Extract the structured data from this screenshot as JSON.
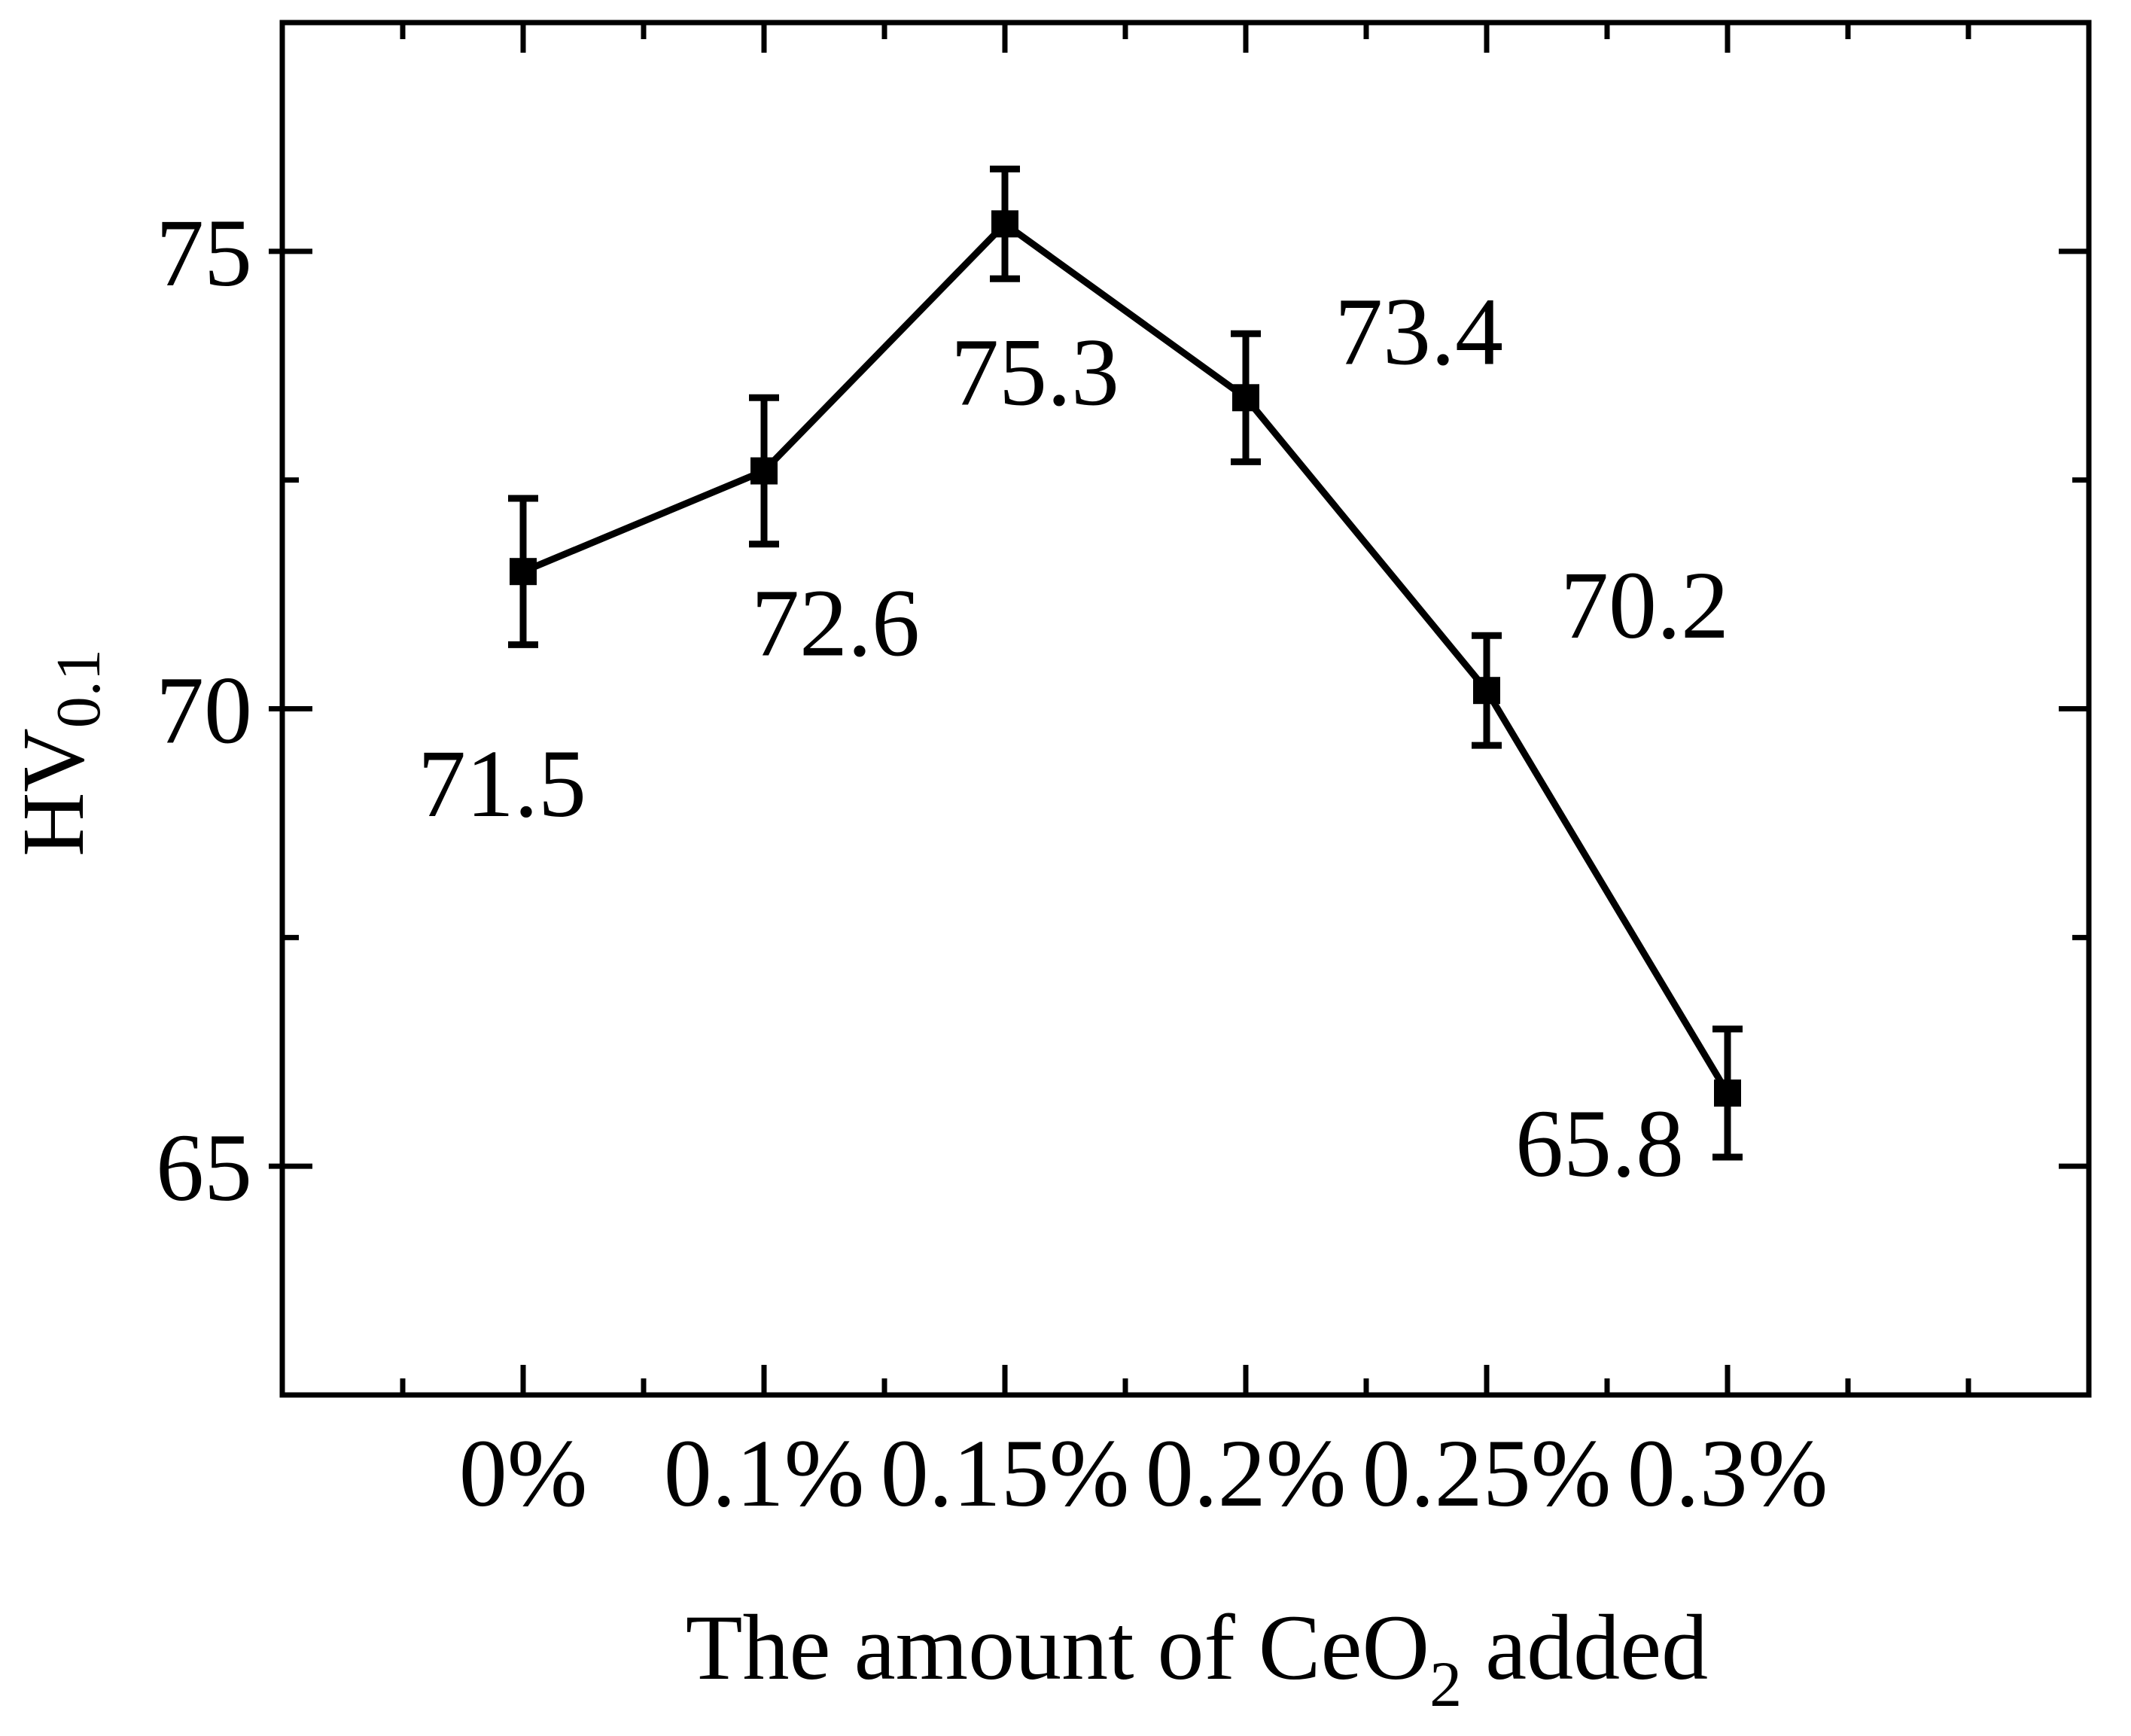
{
  "chart_data": {
    "type": "line",
    "title": "",
    "xlabel": {
      "main": "The amount of CeO",
      "subscript": "2",
      "suffix": " added"
    },
    "ylabel": {
      "main": "HV",
      "subscript": "0.1"
    },
    "categories": [
      "0%",
      "0.1%",
      "0.15%",
      "0.2%",
      "0.25%",
      "0.3%"
    ],
    "series": [
      {
        "values": [
          71.5,
          72.6,
          75.3,
          73.4,
          70.2,
          65.8
        ],
        "error": [
          0.8,
          0.8,
          0.6,
          0.7,
          0.6,
          0.7
        ],
        "labels": [
          "71.5",
          "72.6",
          "75.3",
          "73.4",
          "70.2",
          "65.8"
        ],
        "marker": "square",
        "color": "#000000"
      }
    ],
    "ylim": [
      62.5,
      77.5
    ],
    "yticks": [
      65,
      70,
      75
    ],
    "y_minor_ticks": [
      67.5,
      72.5
    ],
    "grid": false,
    "legend": "none"
  }
}
